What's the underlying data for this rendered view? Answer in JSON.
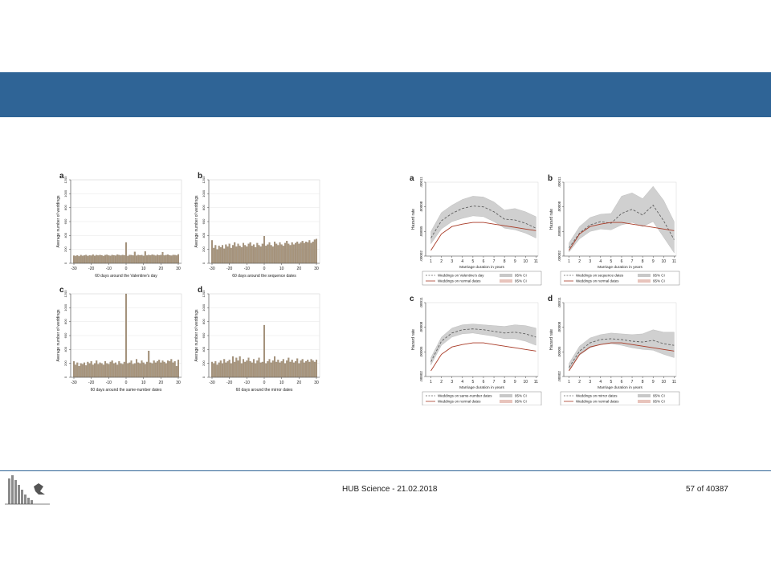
{
  "footer": {
    "center_text": "HUB Science - 21.02.2018",
    "page_text": "57 of 40387"
  },
  "colors": {
    "title_bar": "#2f6496",
    "bar_fill": "#a8957c",
    "normal_line": "#a83a26",
    "ci_fill": "#c8c8c8",
    "ci_normal_fill": "#e8c4bc",
    "special_line": "#606060"
  },
  "chart_data": [
    {
      "type": "bar",
      "panel_label": "a",
      "ylabel": "Average number of weddings",
      "xlabel": "60 days around the Valentine's day",
      "x": [
        -30,
        -29,
        -28,
        -27,
        -26,
        -25,
        -24,
        -23,
        -22,
        -21,
        -20,
        -19,
        -18,
        -17,
        -16,
        -15,
        -14,
        -13,
        -12,
        -11,
        -10,
        -9,
        -8,
        -7,
        -6,
        -5,
        -4,
        -3,
        -2,
        -1,
        0,
        1,
        2,
        3,
        4,
        5,
        6,
        7,
        8,
        9,
        10,
        11,
        12,
        13,
        14,
        15,
        16,
        17,
        18,
        19,
        20,
        21,
        22,
        23,
        24,
        25,
        26,
        27,
        28,
        29,
        30
      ],
      "values": [
        110,
        105,
        115,
        100,
        118,
        108,
        112,
        120,
        105,
        115,
        110,
        125,
        108,
        118,
        112,
        120,
        115,
        105,
        118,
        122,
        112,
        108,
        120,
        115,
        110,
        125,
        118,
        112,
        120,
        115,
        300,
        105,
        120,
        118,
        112,
        165,
        110,
        120,
        115,
        118,
        108,
        170,
        112,
        120,
        115,
        125,
        118,
        110,
        122,
        115,
        120,
        160,
        112,
        118,
        125,
        115,
        110,
        120,
        118,
        112,
        128
      ],
      "ylim": [
        0,
        1200
      ],
      "yticks": [
        0,
        200,
        400,
        600,
        800,
        1000,
        1200
      ],
      "xticks": [
        -30,
        -20,
        -10,
        0,
        10,
        20,
        30
      ]
    },
    {
      "type": "bar",
      "panel_label": "b",
      "ylabel": "Average number of weddings",
      "xlabel": "60 days around the sequence dates",
      "x": [
        -30,
        -29,
        -28,
        -27,
        -26,
        -25,
        -24,
        -23,
        -22,
        -21,
        -20,
        -19,
        -18,
        -17,
        -16,
        -15,
        -14,
        -13,
        -12,
        -11,
        -10,
        -9,
        -8,
        -7,
        -6,
        -5,
        -4,
        -3,
        -2,
        -1,
        0,
        1,
        2,
        3,
        4,
        5,
        6,
        7,
        8,
        9,
        10,
        11,
        12,
        13,
        14,
        15,
        16,
        17,
        18,
        19,
        20,
        21,
        22,
        23,
        24,
        25,
        26,
        27,
        28,
        29,
        30
      ],
      "values": [
        330,
        220,
        260,
        200,
        250,
        230,
        260,
        210,
        270,
        240,
        280,
        220,
        260,
        300,
        240,
        280,
        250,
        230,
        290,
        260,
        240,
        280,
        300,
        250,
        270,
        230,
        290,
        260,
        240,
        280,
        390,
        250,
        270,
        300,
        260,
        240,
        310,
        280,
        260,
        300,
        270,
        250,
        290,
        320,
        280,
        260,
        300,
        270,
        290,
        310,
        280,
        300,
        320,
        290,
        310,
        300,
        330,
        290,
        310,
        340,
        350
      ],
      "ylim": [
        0,
        1200
      ],
      "yticks": [
        0,
        200,
        400,
        600,
        800,
        1000,
        1200
      ],
      "xticks": [
        -30,
        -20,
        -10,
        0,
        10,
        20,
        30
      ]
    },
    {
      "type": "bar",
      "panel_label": "c",
      "ylabel": "Average number of weddings",
      "xlabel": "60 days around the same-number dates",
      "x": [
        -30,
        -29,
        -28,
        -27,
        -26,
        -25,
        -24,
        -23,
        -22,
        -21,
        -20,
        -19,
        -18,
        -17,
        -16,
        -15,
        -14,
        -13,
        -12,
        -11,
        -10,
        -9,
        -8,
        -7,
        -6,
        -5,
        -4,
        -3,
        -2,
        -1,
        0,
        1,
        2,
        3,
        4,
        5,
        6,
        7,
        8,
        9,
        10,
        11,
        12,
        13,
        14,
        15,
        16,
        17,
        18,
        19,
        20,
        21,
        22,
        23,
        24,
        25,
        26,
        27,
        28,
        29,
        30
      ],
      "values": [
        230,
        180,
        210,
        160,
        200,
        190,
        210,
        170,
        220,
        200,
        230,
        180,
        200,
        240,
        190,
        210,
        200,
        180,
        230,
        200,
        190,
        220,
        240,
        200,
        210,
        180,
        230,
        200,
        190,
        220,
        1200,
        200,
        210,
        240,
        190,
        200,
        260,
        210,
        200,
        240,
        210,
        190,
        220,
        380,
        210,
        200,
        240,
        210,
        230,
        250,
        210,
        240,
        220,
        200,
        240,
        230,
        260,
        210,
        230,
        160,
        250
      ],
      "ylim": [
        0,
        1200
      ],
      "yticks": [
        0,
        200,
        400,
        600,
        800,
        1000,
        1200
      ],
      "xticks": [
        -30,
        -20,
        -10,
        0,
        10,
        20,
        30
      ]
    },
    {
      "type": "bar",
      "panel_label": "d",
      "ylabel": "Average number of weddings",
      "xlabel": "60 days around the mirror dates",
      "x": [
        -30,
        -29,
        -28,
        -27,
        -26,
        -25,
        -24,
        -23,
        -22,
        -21,
        -20,
        -19,
        -18,
        -17,
        -16,
        -15,
        -14,
        -13,
        -12,
        -11,
        -10,
        -9,
        -8,
        -7,
        -6,
        -5,
        -4,
        -3,
        -2,
        -1,
        0,
        1,
        2,
        3,
        4,
        5,
        6,
        7,
        8,
        9,
        10,
        11,
        12,
        13,
        14,
        15,
        16,
        17,
        18,
        19,
        20,
        21,
        22,
        23,
        24,
        25,
        26,
        27,
        28,
        29,
        30
      ],
      "values": [
        220,
        200,
        230,
        180,
        210,
        240,
        200,
        260,
        210,
        230,
        250,
        200,
        300,
        220,
        280,
        240,
        300,
        200,
        260,
        220,
        240,
        280,
        230,
        210,
        260,
        200,
        240,
        280,
        210,
        220,
        750,
        200,
        230,
        260,
        210,
        240,
        300,
        220,
        250,
        210,
        230,
        260,
        200,
        240,
        280,
        220,
        250,
        210,
        230,
        270,
        200,
        240,
        260,
        210,
        230,
        250,
        220,
        260,
        240,
        220,
        250
      ],
      "ylim": [
        0,
        1200
      ],
      "yticks": [
        0,
        200,
        400,
        600,
        800,
        1000,
        1200
      ],
      "xticks": [
        -30,
        -20,
        -10,
        0,
        10,
        20,
        30
      ]
    },
    {
      "type": "line",
      "panel_label": "a",
      "ylabel": "Hazard rate",
      "xlabel": "Marriage duration in years",
      "x": [
        1,
        2,
        3,
        4,
        5,
        6,
        7,
        8,
        9,
        10,
        11
      ],
      "ylim": [
        2e-05,
        0.00011
      ],
      "yticks": [
        2e-05,
        5e-05,
        8e-05,
        0.00011
      ],
      "ytick_labels": [
        ".00002",
        ".00005",
        ".00008",
        ".00011"
      ],
      "series": [
        {
          "name": "Weddings on Valentine's day",
          "values": [
            4.2e-05,
            6.3e-05,
            7.2e-05,
            7.8e-05,
            8.1e-05,
            8e-05,
            7.4e-05,
            6.5e-05,
            6.4e-05,
            6e-05,
            5.4e-05
          ],
          "ci_low": [
            3.5e-05,
            5.3e-05,
            6.2e-05,
            6.6e-05,
            6.9e-05,
            6.8e-05,
            6.2e-05,
            5.4e-05,
            5.2e-05,
            4.8e-05,
            4.2e-05
          ],
          "ci_high": [
            5e-05,
            7.3e-05,
            8.2e-05,
            8.9e-05,
            9.3e-05,
            9.2e-05,
            8.6e-05,
            7.6e-05,
            7.8e-05,
            7.4e-05,
            6.8e-05
          ]
        },
        {
          "name": "Weddings on normal dates",
          "values": [
            2.7e-05,
            4.7e-05,
            5.6e-05,
            5.9e-05,
            6.1e-05,
            6.1e-05,
            5.9e-05,
            5.7e-05,
            5.5e-05,
            5.3e-05,
            5.1e-05
          ]
        }
      ],
      "legend": [
        "Weddings on Valentine's day",
        "Weddings on normal dates",
        "95% CI",
        "95% CI"
      ]
    },
    {
      "type": "line",
      "panel_label": "b",
      "ylabel": "Hazard rate",
      "xlabel": "Marriage duration in years",
      "x": [
        1,
        2,
        3,
        4,
        5,
        6,
        7,
        8,
        9,
        10,
        11
      ],
      "ylim": [
        2e-05,
        0.00011
      ],
      "yticks": [
        2e-05,
        5e-05,
        8e-05,
        0.00011
      ],
      "ytick_labels": [
        ".00002",
        ".00005",
        ".00008",
        ".00011"
      ],
      "series": [
        {
          "name": "Weddings on sequence dates",
          "values": [
            3e-05,
            4.8e-05,
            5.8e-05,
            6.2e-05,
            6e-05,
            7.2e-05,
            7.7e-05,
            7e-05,
            8.2e-05,
            6.3e-05,
            4e-05
          ],
          "ci_low": [
            2.5e-05,
            4.1e-05,
            5e-05,
            5.3e-05,
            5.2e-05,
            5.8e-05,
            6.1e-05,
            5.6e-05,
            6.2e-05,
            4.3e-05,
            2.4e-05
          ],
          "ci_high": [
            3.6e-05,
            5.6e-05,
            6.7e-05,
            7.1e-05,
            7.2e-05,
            9.3e-05,
            9.7e-05,
            9e-05,
            0.000105,
            8.8e-05,
            6.2e-05
          ]
        },
        {
          "name": "Weddings on normal dates",
          "values": [
            2.7e-05,
            4.7e-05,
            5.6e-05,
            5.9e-05,
            6.1e-05,
            6.1e-05,
            5.9e-05,
            5.7e-05,
            5.5e-05,
            5.3e-05,
            5.1e-05
          ]
        }
      ],
      "legend": [
        "Weddings on sequence dates",
        "Weddings on normal dates",
        "95% CI",
        "95% CI"
      ]
    },
    {
      "type": "line",
      "panel_label": "c",
      "ylabel": "Hazard rate",
      "xlabel": "Marriage duration in years",
      "x": [
        1,
        2,
        3,
        4,
        5,
        6,
        7,
        8,
        9,
        10,
        11
      ],
      "ylim": [
        2e-05,
        0.00011
      ],
      "yticks": [
        2e-05,
        5e-05,
        8e-05,
        0.00011
      ],
      "ytick_labels": [
        ".00002",
        ".00005",
        ".00008",
        ".00011"
      ],
      "series": [
        {
          "name": "Weddings on same-number dates",
          "values": [
            3.8e-05,
            6.3e-05,
            7.3e-05,
            7.7e-05,
            7.8e-05,
            7.7e-05,
            7.5e-05,
            7.3e-05,
            7.4e-05,
            7.2e-05,
            6.8e-05
          ],
          "ci_low": [
            3.4e-05,
            5.8e-05,
            6.8e-05,
            7.2e-05,
            7.3e-05,
            7.1e-05,
            6.9e-05,
            6.6e-05,
            6.6e-05,
            6.3e-05,
            5.8e-05
          ],
          "ci_high": [
            4.3e-05,
            6.8e-05,
            7.9e-05,
            8.3e-05,
            8.4e-05,
            8.3e-05,
            8.2e-05,
            8.1e-05,
            8.3e-05,
            8.2e-05,
            7.9e-05
          ]
        },
        {
          "name": "Weddings on normal dates",
          "values": [
            2.7e-05,
            4.7e-05,
            5.6e-05,
            5.9e-05,
            6.1e-05,
            6.1e-05,
            5.9e-05,
            5.7e-05,
            5.5e-05,
            5.3e-05,
            5.1e-05
          ]
        }
      ],
      "legend": [
        "Weddings on same-number dates",
        "Weddings on normal dates",
        "95% CI",
        "95% CI"
      ]
    },
    {
      "type": "line",
      "panel_label": "d",
      "ylabel": "Hazard rate",
      "xlabel": "Marriage duration in years",
      "x": [
        1,
        2,
        3,
        4,
        5,
        6,
        7,
        8,
        9,
        10,
        11
      ],
      "ylim": [
        2e-05,
        0.00011
      ],
      "yticks": [
        2e-05,
        5e-05,
        8e-05,
        0.00011
      ],
      "ytick_labels": [
        ".00002",
        ".00005",
        ".00008",
        ".00011"
      ],
      "series": [
        {
          "name": "Weddings on mirror dates",
          "values": [
            3.1e-05,
            5.1e-05,
            6.1e-05,
            6.5e-05,
            6.6e-05,
            6.5e-05,
            6.3e-05,
            6.2e-05,
            6.4e-05,
            6e-05,
            5.8e-05
          ],
          "ci_low": [
            2.7e-05,
            4.6e-05,
            5.5e-05,
            5.9e-05,
            6e-05,
            5.8e-05,
            5.5e-05,
            5.3e-05,
            5.2e-05,
            4.7e-05,
            4.3e-05
          ],
          "ci_high": [
            3.6e-05,
            5.7e-05,
            6.7e-05,
            7.1e-05,
            7.3e-05,
            7.2e-05,
            7.1e-05,
            7.2e-05,
            7.7e-05,
            7.4e-05,
            7.4e-05
          ]
        },
        {
          "name": "Weddings on normal dates",
          "values": [
            2.7e-05,
            4.7e-05,
            5.6e-05,
            5.9e-05,
            6.1e-05,
            6.1e-05,
            5.9e-05,
            5.7e-05,
            5.5e-05,
            5.3e-05,
            5.1e-05
          ]
        }
      ],
      "legend": [
        "Weddings on mirror dates",
        "Weddings on normal dates",
        "95% CI",
        "95% CI"
      ]
    }
  ]
}
